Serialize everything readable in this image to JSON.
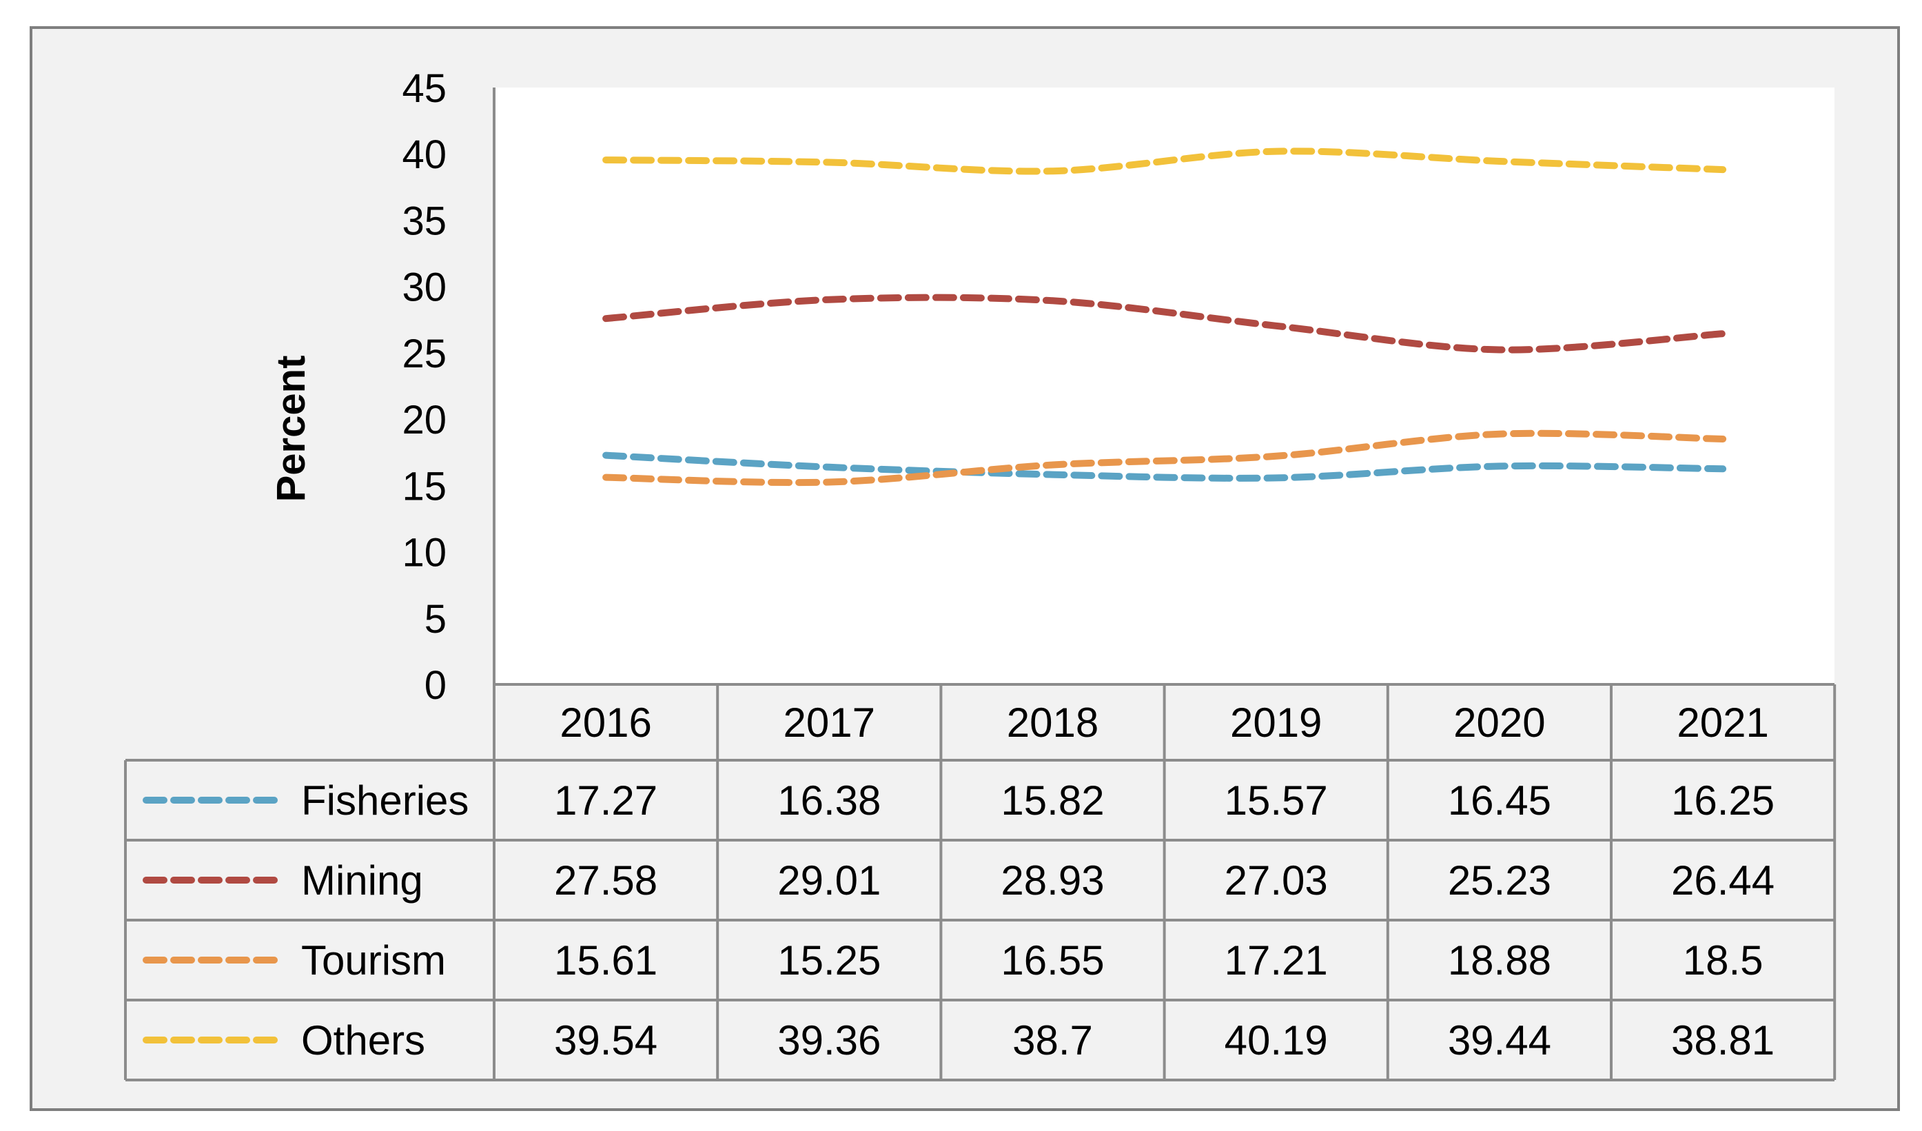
{
  "chart_data": {
    "type": "line",
    "title": "",
    "xlabel": "",
    "ylabel": "Percent",
    "ylim": [
      0,
      45
    ],
    "yticks": [
      0,
      5,
      10,
      15,
      20,
      25,
      30,
      35,
      40,
      45
    ],
    "categories": [
      "2016",
      "2017",
      "2018",
      "2019",
      "2020",
      "2021"
    ],
    "grid": false,
    "legend": "data-table-left",
    "line_style": "dashed",
    "series": [
      {
        "name": "Fisheries",
        "color": "#5ba3c4",
        "values": [
          17.27,
          16.38,
          15.82,
          15.57,
          16.45,
          16.25
        ],
        "labels": [
          "17.27",
          "16.38",
          "15.82",
          "15.57",
          "16.45",
          "16.25"
        ]
      },
      {
        "name": "Mining",
        "color": "#b04a42",
        "values": [
          27.58,
          29.01,
          28.93,
          27.03,
          25.23,
          26.44
        ],
        "labels": [
          "27.58",
          "29.01",
          "28.93",
          "27.03",
          "25.23",
          "26.44"
        ]
      },
      {
        "name": "Tourism",
        "color": "#e8964c",
        "values": [
          15.61,
          15.25,
          16.55,
          17.21,
          18.88,
          18.5
        ],
        "labels": [
          "15.61",
          "15.25",
          "16.55",
          "17.21",
          "18.88",
          "18.5"
        ]
      },
      {
        "name": "Others",
        "color": "#f2c13a",
        "values": [
          39.54,
          39.36,
          38.7,
          40.19,
          39.44,
          38.81
        ],
        "labels": [
          "39.54",
          "39.36",
          "38.7",
          "40.19",
          "39.44",
          "38.81"
        ]
      }
    ]
  }
}
